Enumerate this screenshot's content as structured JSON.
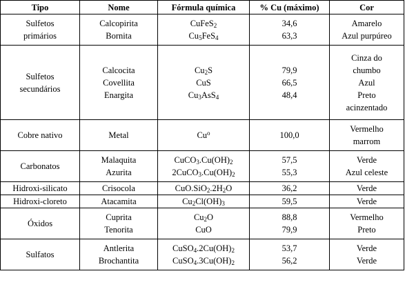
{
  "headers": [
    "Tipo",
    "Nome",
    "Fórmula química",
    "% Cu (máximo)",
    "Cor"
  ],
  "groups": [
    {
      "tipo": [
        "Sulfetos",
        "primários"
      ],
      "rows": [
        {
          "nome": "Calcopirita",
          "formula": [
            [
              "CuFeS",
              ""
            ],
            [
              "2",
              "sub"
            ]
          ],
          "cu": "34,6",
          "cor": [
            "Amarelo"
          ]
        },
        {
          "nome": "Bornita",
          "formula": [
            [
              "Cu",
              ""
            ],
            [
              "5",
              "sub"
            ],
            [
              "FeS",
              ""
            ],
            [
              "4",
              "sub"
            ]
          ],
          "cu": "63,3",
          "cor": [
            "Azul purpúreo"
          ]
        }
      ]
    },
    {
      "tipo": [
        "Sulfetos",
        "secundários"
      ],
      "rows": [
        {
          "nome": "Calcocita",
          "formula": [
            [
              "Cu",
              ""
            ],
            [
              "2",
              "sub"
            ],
            [
              "S",
              ""
            ]
          ],
          "cu": "79,9",
          "cor": [
            "Cinza do",
            "chumbo"
          ]
        },
        {
          "nome": "Covellita",
          "formula": [
            [
              "CuS",
              ""
            ]
          ],
          "cu": "66,5",
          "cor": [
            "Azul"
          ]
        },
        {
          "nome": "Enargita",
          "formula": [
            [
              "Cu",
              ""
            ],
            [
              "3",
              "sub"
            ],
            [
              "AsS",
              ""
            ],
            [
              "4",
              "sub"
            ]
          ],
          "cu": "48,4",
          "cor": [
            "Preto",
            "acinzentado"
          ]
        }
      ]
    },
    {
      "tipo": [
        "Cobre nativo"
      ],
      "rows": [
        {
          "nome": "Metal",
          "formula": [
            [
              "Cu",
              ""
            ],
            [
              "o",
              "sup"
            ]
          ],
          "cu": "100,0",
          "cor": [
            "Vermelho",
            "marrom"
          ]
        }
      ]
    },
    {
      "tipo": [
        "Carbonatos"
      ],
      "rows": [
        {
          "nome": "Malaquita",
          "formula": [
            [
              "CuCO",
              ""
            ],
            [
              "3",
              "sub"
            ],
            [
              ".Cu(OH)",
              ""
            ],
            [
              "2",
              "sub"
            ]
          ],
          "cu": "57,5",
          "cor": [
            "Verde"
          ]
        },
        {
          "nome": "Azurita",
          "formula": [
            [
              "2CuCO",
              ""
            ],
            [
              "3",
              "sub"
            ],
            [
              ".Cu(OH)",
              ""
            ],
            [
              "2",
              "sub"
            ]
          ],
          "cu": "55,3",
          "cor": [
            "Azul celeste"
          ]
        }
      ]
    },
    {
      "tipo": [
        "Hidroxi-silicato"
      ],
      "rows": [
        {
          "nome": "Crisocola",
          "formula": [
            [
              "CuO.SiO",
              ""
            ],
            [
              "2",
              "sub"
            ],
            [
              ".2H",
              ""
            ],
            [
              "2",
              "sub"
            ],
            [
              "O",
              ""
            ]
          ],
          "cu": "36,2",
          "cor": [
            "Verde"
          ]
        }
      ]
    },
    {
      "tipo": [
        "Hidroxi-cloreto"
      ],
      "rows": [
        {
          "nome": "Atacamita",
          "formula": [
            [
              "Cu",
              ""
            ],
            [
              "2",
              "sub"
            ],
            [
              "Cl(OH)",
              ""
            ],
            [
              "3",
              "sub"
            ]
          ],
          "cu": "59,5",
          "cor": [
            "Verde"
          ]
        }
      ]
    },
    {
      "tipo": [
        "Óxidos"
      ],
      "rows": [
        {
          "nome": "Cuprita",
          "formula": [
            [
              "Cu",
              ""
            ],
            [
              "2",
              "sub"
            ],
            [
              "O",
              ""
            ]
          ],
          "cu": "88,8",
          "cor": [
            "Vermelho"
          ]
        },
        {
          "nome": "Tenorita",
          "formula": [
            [
              "CuO",
              ""
            ]
          ],
          "cu": "79,9",
          "cor": [
            "Preto"
          ]
        }
      ]
    },
    {
      "tipo": [
        "Sulfatos"
      ],
      "rows": [
        {
          "nome": "Antlerita",
          "formula": [
            [
              "CuSO",
              ""
            ],
            [
              "4",
              "sub"
            ],
            [
              ".2Cu(OH)",
              ""
            ],
            [
              "2",
              "sub"
            ]
          ],
          "cu": "53,7",
          "cor": [
            "Verde"
          ]
        },
        {
          "nome": "Brochantita",
          "formula": [
            [
              "CuSO",
              ""
            ],
            [
              "4",
              "sub"
            ],
            [
              ".3Cu(OH)",
              ""
            ],
            [
              "2",
              "sub"
            ]
          ],
          "cu": "56,2",
          "cor": [
            "Verde"
          ]
        }
      ]
    }
  ]
}
